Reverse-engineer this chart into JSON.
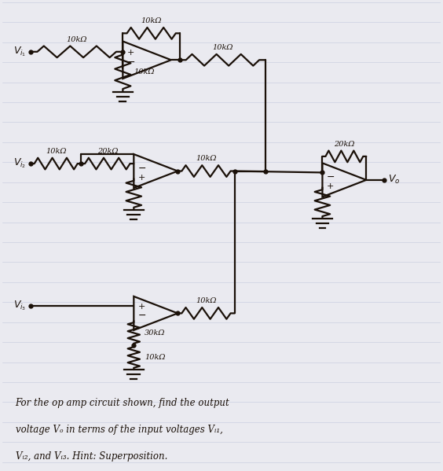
{
  "bg_color": "#eaeaf0",
  "line_color": "#1a1008",
  "line_width": 1.6,
  "fig_width": 5.64,
  "fig_height": 5.99,
  "line_colors_notebook": "#c8cce0",
  "caption_line1": "For the op amp circuit shown, find the output",
  "caption_line2": "voltage Vₒ in terms of the input voltages Vᵢ₁,",
  "caption_line3": "Vᵢ₂, and Vᵢ₃. Hint: Superposition.",
  "res_labels": {
    "oa1_in": "10kΩ",
    "oa1_gnd": "10kΩ",
    "oa1_fb": "10kΩ",
    "oa1_out10k": "10kΩ",
    "oa2_in1": "10kΩ",
    "oa2_in2": "20kΩ",
    "oa2_out": "10kΩ",
    "oa3_fb": "20kΩ",
    "oa4_out": "10kΩ",
    "oa4_fb1": "30kΩ",
    "oa4_fb2": "10kΩ"
  }
}
